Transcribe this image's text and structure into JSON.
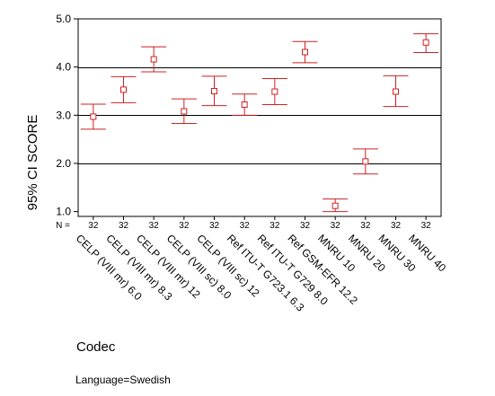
{
  "chart_data": {
    "type": "errorbar",
    "ylabel": "95% CI SCORE",
    "xlabel": "Codec",
    "ylim": [
      0.9,
      5.0
    ],
    "yticks": [
      "1.0",
      "2.0",
      "3.0",
      "4.0",
      "5.0"
    ],
    "gridlines_y": [
      2.0,
      3.0,
      4.0
    ],
    "n_label": "N =",
    "categories": [
      "CELP (VIII mr) 6.0",
      "CELP (VIII mr) 8.3",
      "CELP (VIII mr) 12",
      "CELP (VIII sc) 8.0",
      "CELP (VIII sc) 12",
      "Ref ITU-T G723.1 6.3",
      "Ref ITU-T G729 8.0",
      "Ref GSM-EFR 12.2",
      "MNRU 10",
      "MNRU 20",
      "MNRU 30",
      "MNRU 40"
    ],
    "n": [
      "32",
      "32",
      "32",
      "32",
      "32",
      "32",
      "32",
      "32",
      "32",
      "32",
      "32",
      "32"
    ],
    "mean": [
      2.97,
      3.53,
      4.16,
      3.08,
      3.5,
      3.22,
      3.49,
      4.31,
      1.12,
      2.04,
      3.49,
      4.51
    ],
    "lower": [
      2.71,
      3.26,
      3.9,
      2.83,
      3.2,
      3.0,
      3.22,
      4.09,
      1.0,
      1.78,
      3.18,
      4.3
    ],
    "upper": [
      3.23,
      3.8,
      4.42,
      3.34,
      3.81,
      3.44,
      3.76,
      4.53,
      1.26,
      2.3,
      3.82,
      4.69
    ],
    "series_color": "#cc2222",
    "grid": true
  },
  "footnote": "Language=Swedish"
}
